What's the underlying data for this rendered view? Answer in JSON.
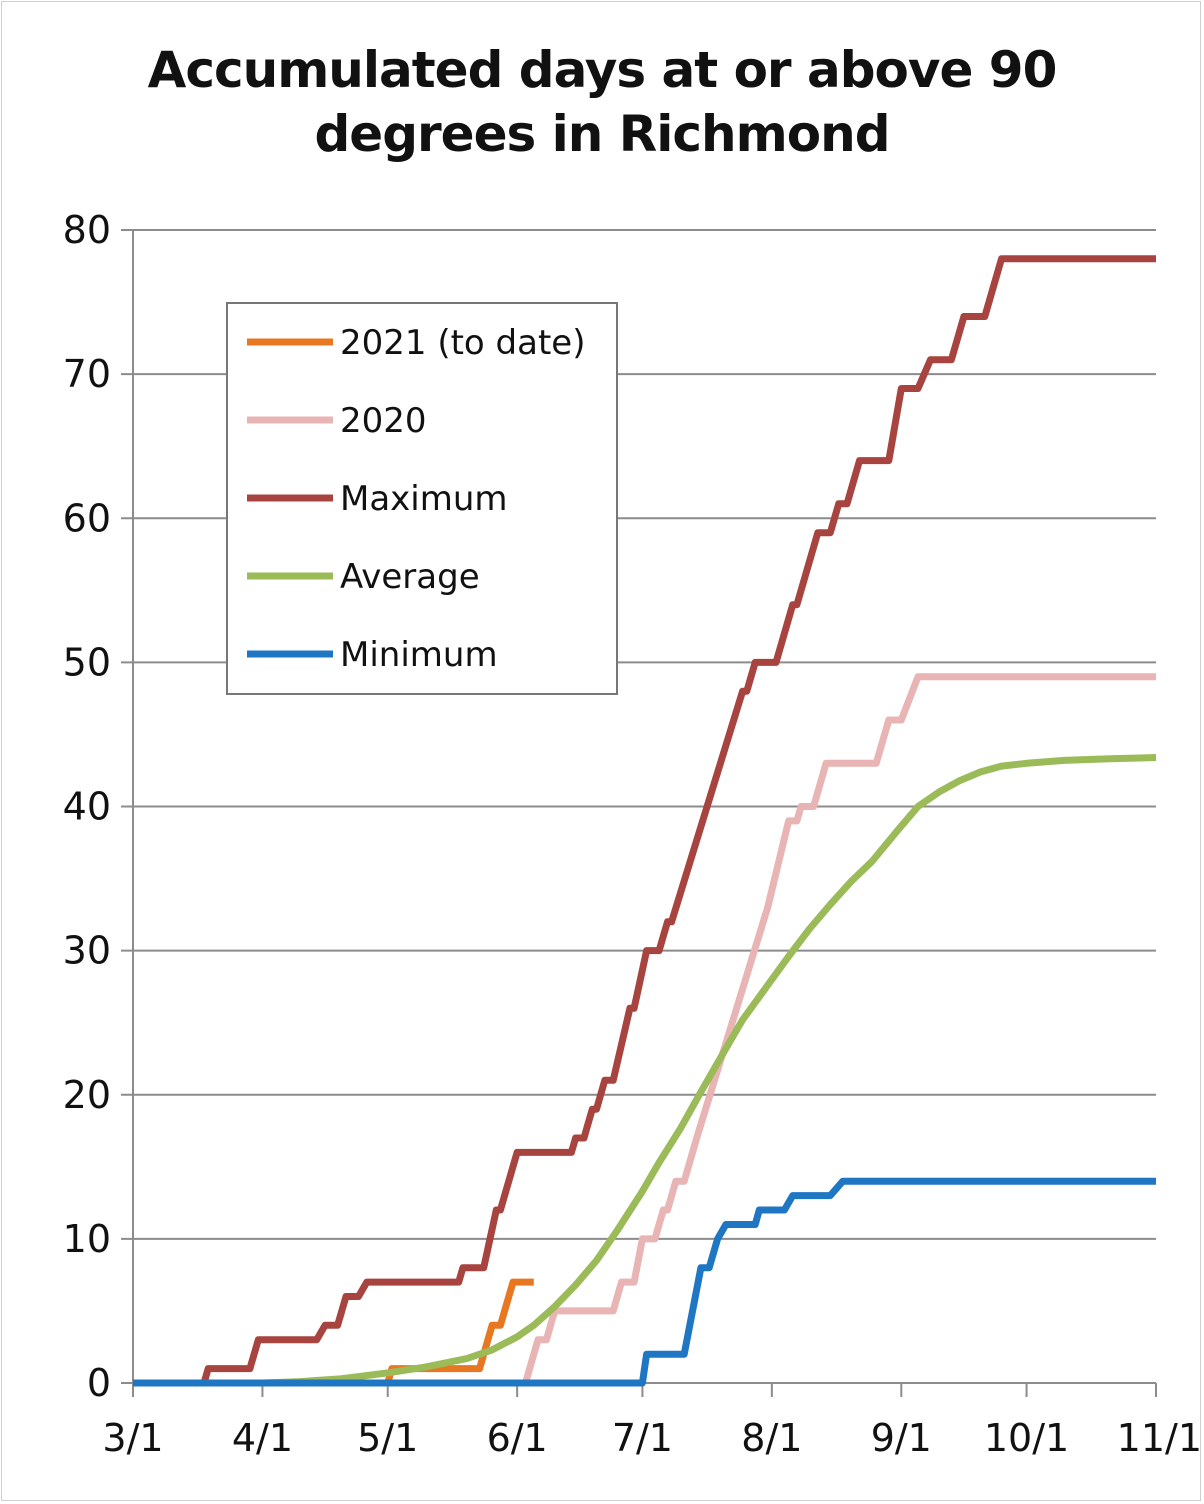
{
  "chart_data": {
    "type": "line",
    "title_lines": [
      "Accumulated days at or above 90",
      "degrees in Richmond"
    ],
    "xlabel": "",
    "ylabel": "",
    "x_ticks": [
      "3/1",
      "4/1",
      "5/1",
      "6/1",
      "7/1",
      "8/1",
      "9/1",
      "10/1",
      "11/1"
    ],
    "y_ticks": [
      "0",
      "10",
      "20",
      "30",
      "40",
      "50",
      "60",
      "70",
      "80"
    ],
    "xlim": [
      "3/1",
      "11/1"
    ],
    "ylim": [
      0,
      80
    ],
    "grid": "horizontal",
    "legend_position": "upper-left",
    "series": [
      {
        "name": "2021 (to date)",
        "color": "#e87722",
        "points": [
          [
            "3/1",
            0
          ],
          [
            "5/1",
            0
          ],
          [
            "5/2",
            1
          ],
          [
            "5/23",
            1
          ],
          [
            "5/25",
            3
          ],
          [
            "5/26",
            4
          ],
          [
            "5/28",
            4
          ],
          [
            "5/30",
            6
          ],
          [
            "5/31",
            7
          ],
          [
            "6/5",
            7
          ]
        ]
      },
      {
        "name": "2020",
        "color": "#e8b4b4",
        "points": [
          [
            "3/1",
            0
          ],
          [
            "6/3",
            0
          ],
          [
            "6/5",
            2
          ],
          [
            "6/6",
            3
          ],
          [
            "6/8",
            3
          ],
          [
            "6/10",
            5
          ],
          [
            "6/24",
            5
          ],
          [
            "6/26",
            7
          ],
          [
            "6/29",
            7
          ],
          [
            "7/1",
            10
          ],
          [
            "7/4",
            10
          ],
          [
            "7/6",
            12
          ],
          [
            "7/7",
            12
          ],
          [
            "7/9",
            14
          ],
          [
            "7/11",
            14
          ],
          [
            "7/14",
            17
          ],
          [
            "7/31",
            33
          ],
          [
            "8/5",
            39
          ],
          [
            "8/7",
            39
          ],
          [
            "8/8",
            40
          ],
          [
            "8/11",
            40
          ],
          [
            "8/14",
            43
          ],
          [
            "8/26",
            43
          ],
          [
            "8/27",
            44
          ],
          [
            "8/29",
            46
          ],
          [
            "9/1",
            46
          ],
          [
            "9/5",
            49
          ],
          [
            "11/1",
            49
          ]
        ]
      },
      {
        "name": "Maximum",
        "color": "#a84440",
        "points": [
          [
            "3/1",
            0
          ],
          [
            "3/18",
            0
          ],
          [
            "3/19",
            1
          ],
          [
            "3/29",
            1
          ],
          [
            "3/31",
            3
          ],
          [
            "4/14",
            3
          ],
          [
            "4/16",
            4
          ],
          [
            "4/19",
            4
          ],
          [
            "4/21",
            6
          ],
          [
            "4/24",
            6
          ],
          [
            "4/26",
            7
          ],
          [
            "5/18",
            7
          ],
          [
            "5/19",
            8
          ],
          [
            "5/24",
            8
          ],
          [
            "5/27",
            12
          ],
          [
            "5/28",
            12
          ],
          [
            "6/1",
            16
          ],
          [
            "6/14",
            16
          ],
          [
            "6/15",
            17
          ],
          [
            "6/17",
            17
          ],
          [
            "6/18",
            18
          ],
          [
            "6/19",
            19
          ],
          [
            "6/20",
            19
          ],
          [
            "6/22",
            21
          ],
          [
            "6/24",
            21
          ],
          [
            "6/28",
            26
          ],
          [
            "6/29",
            26
          ],
          [
            "7/2",
            30
          ],
          [
            "7/5",
            30
          ],
          [
            "7/7",
            32
          ],
          [
            "7/8",
            32
          ],
          [
            "7/25",
            48
          ],
          [
            "7/26",
            48
          ],
          [
            "7/28",
            50
          ],
          [
            "8/2",
            50
          ],
          [
            "8/6",
            54
          ],
          [
            "8/7",
            54
          ],
          [
            "8/12",
            59
          ],
          [
            "8/15",
            59
          ],
          [
            "8/17",
            61
          ],
          [
            "8/19",
            61
          ],
          [
            "8/22",
            64
          ],
          [
            "8/29",
            64
          ],
          [
            "9/1",
            69
          ],
          [
            "9/5",
            69
          ],
          [
            "9/8",
            71
          ],
          [
            "9/13",
            71
          ],
          [
            "9/16",
            74
          ],
          [
            "9/21",
            74
          ],
          [
            "9/25",
            78
          ],
          [
            "11/1",
            78
          ]
        ]
      },
      {
        "name": "Average",
        "color": "#9bbb59",
        "points": [
          [
            "3/1",
            0
          ],
          [
            "3/15",
            0
          ],
          [
            "4/1",
            0
          ],
          [
            "4/10",
            0.1
          ],
          [
            "4/20",
            0.3
          ],
          [
            "5/1",
            0.7
          ],
          [
            "5/10",
            1.1
          ],
          [
            "5/20",
            1.7
          ],
          [
            "5/26",
            2.3
          ],
          [
            "6/1",
            3.2
          ],
          [
            "6/5",
            4.0
          ],
          [
            "6/10",
            5.3
          ],
          [
            "6/15",
            6.8
          ],
          [
            "6/20",
            8.5
          ],
          [
            "6/25",
            10.6
          ],
          [
            "7/1",
            13.3
          ],
          [
            "7/5",
            15.3
          ],
          [
            "7/10",
            17.6
          ],
          [
            "7/15",
            20.2
          ],
          [
            "7/20",
            22.7
          ],
          [
            "7/25",
            25.2
          ],
          [
            "7/31",
            27.6
          ],
          [
            "8/5",
            29.6
          ],
          [
            "8/10",
            31.5
          ],
          [
            "8/15",
            33.2
          ],
          [
            "8/20",
            34.8
          ],
          [
            "8/25",
            36.2
          ],
          [
            "8/31",
            38.3
          ],
          [
            "9/5",
            40.0
          ],
          [
            "9/10",
            41.0
          ],
          [
            "9/15",
            41.8
          ],
          [
            "9/20",
            42.4
          ],
          [
            "9/25",
            42.8
          ],
          [
            "10/1",
            43.0
          ],
          [
            "10/10",
            43.2
          ],
          [
            "10/20",
            43.3
          ],
          [
            "11/1",
            43.4
          ]
        ]
      },
      {
        "name": "Minimum",
        "color": "#1f77c4",
        "points": [
          [
            "3/1",
            0
          ],
          [
            "7/1",
            0
          ],
          [
            "7/2",
            2
          ],
          [
            "7/11",
            2
          ],
          [
            "7/15",
            8
          ],
          [
            "7/17",
            8
          ],
          [
            "7/19",
            10
          ],
          [
            "7/21",
            11
          ],
          [
            "7/28",
            11
          ],
          [
            "7/29",
            12
          ],
          [
            "8/4",
            12
          ],
          [
            "8/6",
            13
          ],
          [
            "8/15",
            13
          ],
          [
            "8/18",
            14
          ],
          [
            "11/1",
            14
          ]
        ]
      }
    ]
  }
}
